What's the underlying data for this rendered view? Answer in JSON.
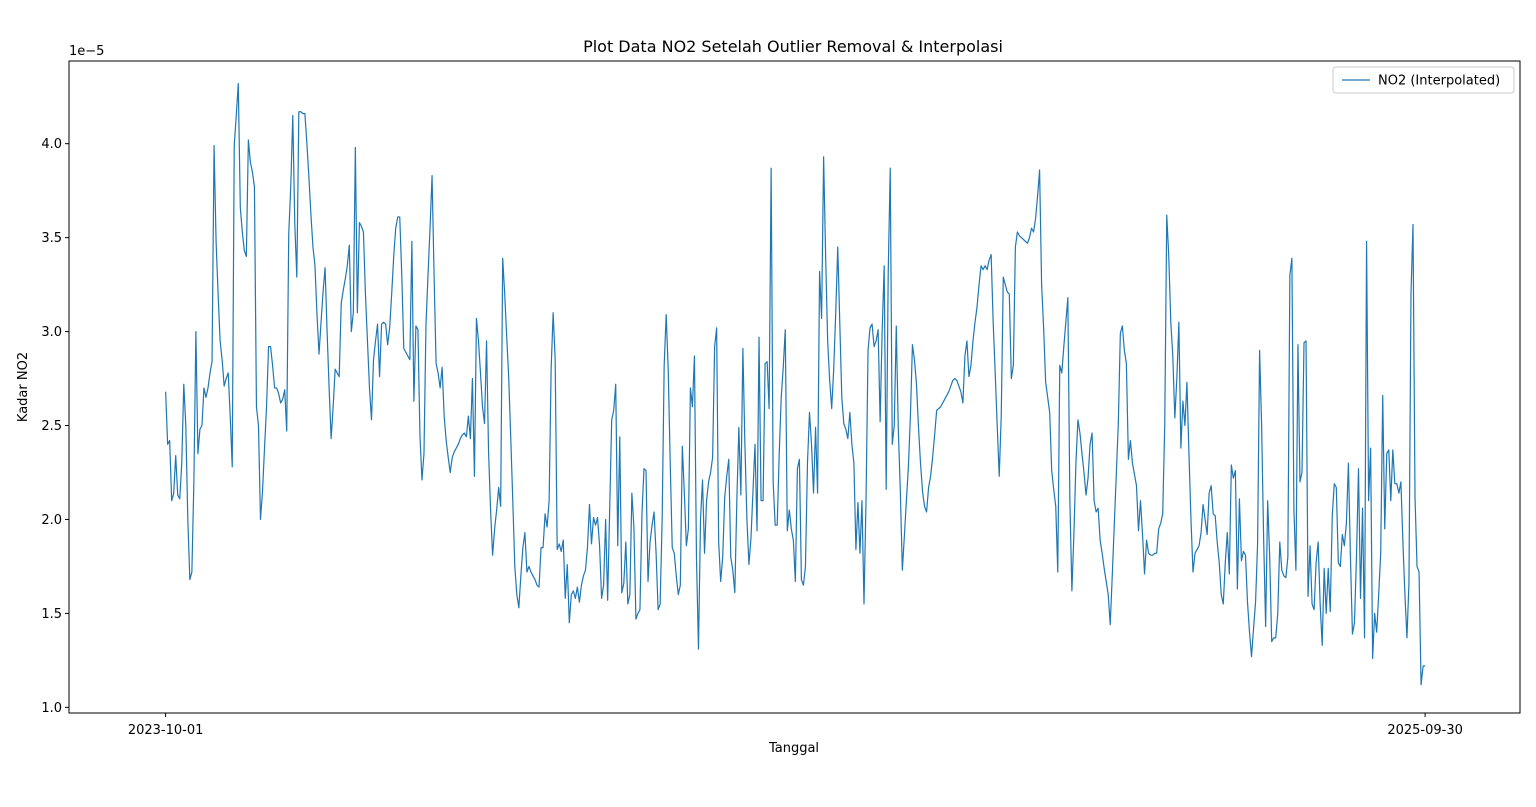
{
  "chart_data": {
    "type": "line",
    "title": "Plot Data NO2 Setelah Outlier Removal & Interpolasi",
    "xlabel": "Tanggal",
    "ylabel": "Kadar NO2",
    "y_offset_label": "1e−5",
    "y_scale_exponent": -5,
    "x_ticks": [
      "2023-10-01",
      "2025-09-30"
    ],
    "y_ticks": [
      "1.0",
      "1.5",
      "2.0",
      "2.5",
      "3.0",
      "3.5",
      "4.0"
    ],
    "y_tick_values": [
      1.0,
      1.5,
      2.0,
      2.5,
      3.0,
      3.5,
      4.0
    ],
    "ylim": [
      0.97,
      4.44
    ],
    "xlim_days": [
      -56,
      785
    ],
    "legend_position": "top-right",
    "grid": false,
    "series": [
      {
        "name": "NO2 (Interpolated)",
        "color": "#1f77b4",
        "x_start": "2023-10-01",
        "x_end": "2025-09-30",
        "values": [
          2.68,
          2.4,
          2.42,
          2.1,
          2.14,
          2.34,
          2.13,
          2.11,
          2.3,
          2.72,
          2.5,
          2.0,
          1.68,
          1.72,
          2.2,
          3.0,
          2.35,
          2.48,
          2.5,
          2.7,
          2.65,
          2.7,
          2.78,
          2.84,
          3.99,
          3.48,
          3.2,
          2.95,
          2.85,
          2.71,
          2.75,
          2.78,
          2.55,
          2.28,
          3.99,
          4.15,
          4.32,
          3.66,
          3.53,
          3.43,
          3.4,
          4.02,
          3.9,
          3.85,
          3.77,
          2.6,
          2.5,
          2.0,
          2.15,
          2.38,
          2.6,
          2.92,
          2.92,
          2.82,
          2.7,
          2.7,
          2.67,
          2.62,
          2.64,
          2.69,
          2.47,
          3.52,
          3.77,
          4.15,
          3.57,
          3.29,
          4.17,
          4.17,
          4.16,
          4.16,
          4.0,
          3.82,
          3.62,
          3.45,
          3.35,
          3.09,
          2.88,
          3.05,
          3.21,
          3.34,
          3.0,
          2.7,
          2.43,
          2.6,
          2.8,
          2.78,
          2.76,
          3.15,
          3.22,
          3.28,
          3.35,
          3.46,
          3.0,
          3.1,
          3.98,
          3.1,
          3.58,
          3.56,
          3.53,
          3.2,
          2.95,
          2.7,
          2.53,
          2.85,
          2.95,
          3.04,
          2.76,
          3.04,
          3.05,
          3.04,
          2.93,
          3.02,
          3.2,
          3.4,
          3.55,
          3.61,
          3.61,
          3.3,
          2.91,
          2.89,
          2.87,
          2.85,
          3.48,
          2.63,
          3.03,
          3.01,
          2.45,
          2.21,
          2.35,
          3.04,
          3.3,
          3.55,
          3.83,
          3.3,
          2.83,
          2.78,
          2.7,
          2.81,
          2.55,
          2.42,
          2.33,
          2.25,
          2.33,
          2.36,
          2.38,
          2.4,
          2.43,
          2.45,
          2.46,
          2.44,
          2.55,
          2.43,
          2.75,
          2.23,
          3.07,
          2.95,
          2.78,
          2.6,
          2.51,
          2.95,
          2.36,
          2.05,
          1.81,
          1.95,
          2.05,
          2.17,
          2.07,
          3.39,
          3.2,
          2.97,
          2.75,
          2.43,
          2.1,
          1.75,
          1.6,
          1.53,
          1.7,
          1.85,
          1.93,
          1.72,
          1.75,
          1.72,
          1.7,
          1.68,
          1.65,
          1.64,
          1.85,
          1.85,
          2.03,
          1.96,
          2.1,
          2.8,
          3.1,
          2.85,
          1.84,
          1.87,
          1.83,
          1.89,
          1.58,
          1.76,
          1.45,
          1.6,
          1.62,
          1.58,
          1.64,
          1.56,
          1.65,
          1.7,
          1.73,
          1.85,
          2.08,
          1.87,
          2.01,
          1.97,
          2.01,
          1.86,
          1.58,
          1.65,
          2.0,
          1.57,
          2.05,
          2.53,
          2.58,
          2.72,
          1.86,
          2.44,
          1.61,
          1.66,
          1.88,
          1.55,
          1.6,
          2.14,
          1.96,
          1.47,
          1.5,
          1.52,
          2.03,
          2.27,
          2.26,
          1.67,
          1.88,
          1.97,
          2.04,
          1.82,
          1.52,
          1.55,
          2.0,
          2.82,
          3.09,
          2.8,
          2.3,
          1.85,
          1.82,
          1.7,
          1.6,
          1.65,
          2.39,
          2.14,
          1.86,
          1.95,
          2.7,
          2.6,
          2.87,
          1.8,
          1.31,
          2.0,
          2.21,
          1.82,
          2.1,
          2.2,
          2.25,
          2.33,
          2.92,
          3.02,
          1.88,
          1.67,
          1.8,
          2.12,
          2.23,
          2.32,
          1.8,
          1.73,
          1.61,
          2.1,
          2.49,
          2.13,
          2.91,
          2.4,
          2.0,
          1.76,
          1.9,
          2.15,
          2.4,
          1.94,
          2.97,
          2.1,
          2.1,
          2.83,
          2.84,
          2.59,
          3.87,
          2.2,
          1.97,
          1.97,
          2.35,
          2.65,
          2.81,
          3.01,
          1.94,
          2.05,
          1.95,
          1.89,
          1.67,
          2.27,
          2.32,
          1.68,
          1.65,
          1.75,
          2.3,
          2.57,
          2.4,
          2.14,
          2.49,
          2.14,
          3.32,
          3.07,
          3.93,
          3.4,
          2.95,
          2.74,
          2.59,
          2.8,
          3.1,
          3.45,
          3.05,
          2.65,
          2.51,
          2.48,
          2.43,
          2.57,
          2.4,
          2.3,
          1.84,
          2.09,
          1.82,
          2.1,
          1.55,
          2.1,
          2.9,
          3.02,
          3.04,
          2.92,
          2.95,
          3.01,
          2.52,
          3.0,
          3.35,
          2.16,
          3.31,
          3.87,
          2.4,
          2.5,
          3.03,
          2.48,
          2.15,
          1.73,
          1.91,
          2.1,
          2.28,
          2.55,
          2.93,
          2.85,
          2.72,
          2.49,
          2.3,
          2.15,
          2.07,
          2.04,
          2.17,
          2.23,
          2.33,
          2.45,
          2.58,
          2.59,
          2.6,
          2.62,
          2.64,
          2.66,
          2.68,
          2.71,
          2.74,
          2.75,
          2.74,
          2.71,
          2.68,
          2.62,
          2.87,
          2.95,
          2.76,
          2.82,
          2.95,
          3.05,
          3.13,
          3.25,
          3.35,
          3.33,
          3.35,
          3.33,
          3.38,
          3.41,
          3.05,
          2.78,
          2.5,
          2.23,
          2.55,
          3.29,
          3.25,
          3.21,
          3.2,
          2.75,
          2.82,
          3.45,
          3.53,
          3.51,
          3.5,
          3.49,
          3.48,
          3.47,
          3.5,
          3.55,
          3.53,
          3.6,
          3.72,
          3.86,
          3.25,
          3.02,
          2.73,
          2.65,
          2.57,
          2.26,
          2.16,
          2.07,
          1.72,
          2.82,
          2.78,
          2.92,
          3.05,
          3.18,
          2.1,
          1.62,
          1.92,
          2.3,
          2.53,
          2.46,
          2.35,
          2.25,
          2.13,
          2.22,
          2.4,
          2.46,
          2.1,
          2.04,
          2.06,
          1.89,
          1.82,
          1.74,
          1.67,
          1.6,
          1.44,
          1.7,
          1.97,
          2.24,
          2.51,
          2.99,
          3.03,
          2.9,
          2.83,
          2.32,
          2.42,
          2.3,
          2.24,
          2.18,
          1.94,
          2.1,
          1.92,
          1.71,
          1.89,
          1.82,
          1.81,
          1.81,
          1.82,
          1.82,
          1.95,
          1.98,
          2.03,
          2.5,
          3.62,
          3.4,
          3.05,
          2.87,
          2.54,
          2.75,
          3.05,
          2.38,
          2.63,
          2.5,
          2.73,
          2.35,
          2.0,
          1.72,
          1.82,
          1.84,
          1.86,
          1.93,
          2.08,
          2.0,
          1.92,
          2.14,
          2.18,
          2.03,
          2.02,
          1.88,
          1.77,
          1.6,
          1.55,
          1.77,
          1.93,
          1.71,
          2.29,
          2.22,
          2.26,
          1.63,
          2.11,
          1.78,
          1.83,
          1.81,
          1.56,
          1.4,
          1.27,
          1.42,
          1.56,
          1.87,
          2.9,
          2.5,
          1.9,
          1.43,
          2.1,
          1.8,
          1.35,
          1.37,
          1.37,
          1.5,
          1.88,
          1.73,
          1.7,
          1.69,
          1.8,
          3.3,
          3.39,
          2.05,
          1.73,
          2.93,
          2.2,
          2.25,
          2.94,
          2.95,
          1.59,
          1.86,
          1.55,
          1.52,
          1.77,
          1.88,
          1.55,
          1.33,
          1.74,
          1.5,
          1.74,
          1.51,
          2.02,
          2.19,
          2.17,
          1.77,
          1.75,
          1.92,
          1.86,
          1.98,
          2.3,
          1.8,
          1.39,
          1.45,
          1.8,
          2.27,
          1.58,
          2.06,
          1.37,
          3.48,
          2.1,
          2.38,
          1.26,
          1.5,
          1.4,
          1.6,
          1.82,
          2.66,
          1.95,
          2.35,
          2.37,
          2.1,
          2.37,
          2.19,
          2.19,
          2.14,
          2.2,
          1.88,
          1.6,
          1.37,
          1.66,
          3.2,
          3.57,
          2.12,
          1.75,
          1.72,
          1.12,
          1.22,
          1.22
        ]
      }
    ]
  }
}
